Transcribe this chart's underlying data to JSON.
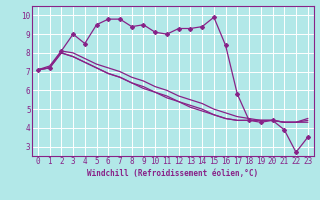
{
  "title": "",
  "xlabel": "Windchill (Refroidissement éolien,°C)",
  "ylabel": "",
  "background_color": "#b2e8e8",
  "grid_color": "#ffffff",
  "line_color": "#882288",
  "spine_color": "#882288",
  "x_ticks": [
    0,
    1,
    2,
    3,
    4,
    5,
    6,
    7,
    8,
    9,
    10,
    11,
    12,
    13,
    14,
    15,
    16,
    17,
    18,
    19,
    20,
    21,
    22,
    23
  ],
  "y_ticks": [
    3,
    4,
    5,
    6,
    7,
    8,
    9,
    10
  ],
  "ylim": [
    2.5,
    10.5
  ],
  "xlim": [
    -0.5,
    23.5
  ],
  "series": [
    [
      7.1,
      7.2,
      8.1,
      9.0,
      8.5,
      9.5,
      9.8,
      9.8,
      9.4,
      9.5,
      9.1,
      9.0,
      9.3,
      9.3,
      9.4,
      9.9,
      8.4,
      5.8,
      4.4,
      4.3,
      4.4,
      3.9,
      2.7,
      3.5
    ],
    [
      7.1,
      7.3,
      8.1,
      8.0,
      7.7,
      7.4,
      7.2,
      7.0,
      6.7,
      6.5,
      6.2,
      6.0,
      5.7,
      5.5,
      5.3,
      5.0,
      4.8,
      4.6,
      4.5,
      4.4,
      4.4,
      4.3,
      4.3,
      4.3
    ],
    [
      7.1,
      7.2,
      8.0,
      7.8,
      7.5,
      7.2,
      6.9,
      6.7,
      6.4,
      6.2,
      5.9,
      5.7,
      5.4,
      5.2,
      5.0,
      4.7,
      4.5,
      4.4,
      4.4,
      4.4,
      4.4,
      4.3,
      4.3,
      4.4
    ],
    [
      7.1,
      7.2,
      8.0,
      7.8,
      7.5,
      7.2,
      6.9,
      6.7,
      6.4,
      6.1,
      5.9,
      5.6,
      5.4,
      5.1,
      4.9,
      4.7,
      4.5,
      4.4,
      4.4,
      4.4,
      4.4,
      4.3,
      4.3,
      4.5
    ]
  ],
  "marker_series": 0,
  "marker_style": "D",
  "marker_size": 2.0,
  "linewidth": 0.9,
  "tick_fontsize": 5.5,
  "xlabel_fontsize": 5.5
}
